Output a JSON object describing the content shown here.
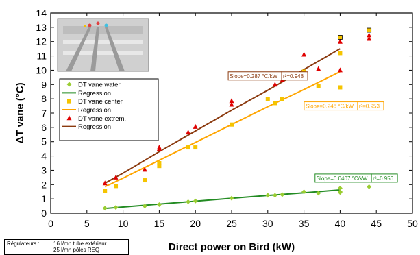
{
  "chart_data": {
    "type": "scatter",
    "xlabel": "Direct power on Bird (kW)",
    "ylabel": "ΔT vane (°C)",
    "xlim": [
      0,
      50
    ],
    "ylim": [
      0,
      14
    ],
    "xticks": [
      0,
      5,
      10,
      15,
      20,
      25,
      30,
      35,
      40,
      45,
      50
    ],
    "yticks": [
      0,
      1,
      2,
      3,
      4,
      5,
      6,
      7,
      8,
      9,
      10,
      11,
      12,
      13,
      14
    ],
    "grid": false,
    "legend_position": "upper-left, below inset photo",
    "series": [
      {
        "name": "DT vane water",
        "kind": "points",
        "marker": "diamond",
        "color": "#9acd32",
        "points": [
          [
            7.5,
            0.35
          ],
          [
            9,
            0.4
          ],
          [
            13,
            0.5
          ],
          [
            15,
            0.6
          ],
          [
            19,
            0.8
          ],
          [
            20,
            0.85
          ],
          [
            25,
            1.05
          ],
          [
            30,
            1.25
          ],
          [
            31,
            1.25
          ],
          [
            32,
            1.3
          ],
          [
            35,
            1.5
          ],
          [
            37,
            1.4
          ],
          [
            40,
            1.5
          ],
          [
            40,
            1.75
          ],
          [
            40,
            1.45
          ],
          [
            44,
            1.85
          ]
        ]
      },
      {
        "name": "Regression",
        "kind": "line",
        "color": "#228b22",
        "points": [
          [
            7.5,
            0.33
          ],
          [
            10,
            0.43
          ],
          [
            15,
            0.64
          ],
          [
            20,
            0.84
          ],
          [
            25,
            1.04
          ],
          [
            30,
            1.24
          ],
          [
            35,
            1.43
          ],
          [
            40,
            1.63
          ]
        ]
      },
      {
        "name": "DT vane center",
        "kind": "points",
        "marker": "square",
        "color": "#f5c400",
        "points": [
          [
            7.5,
            1.55
          ],
          [
            9,
            1.9
          ],
          [
            13,
            2.3
          ],
          [
            15,
            3.3
          ],
          [
            15,
            3.5
          ],
          [
            19,
            4.6
          ],
          [
            20,
            4.6
          ],
          [
            25,
            6.2
          ],
          [
            30,
            8.0
          ],
          [
            31,
            7.7
          ],
          [
            32,
            8.0
          ],
          [
            35,
            9.9
          ],
          [
            37,
            8.9
          ],
          [
            40,
            8.8
          ],
          [
            40,
            11.2
          ],
          [
            40,
            12.3
          ],
          [
            44,
            12.8
          ]
        ]
      },
      {
        "name": "Regression",
        "kind": "line",
        "color": "#ffa500",
        "points": [
          [
            7.5,
            1.85
          ],
          [
            10,
            2.45
          ],
          [
            15,
            3.7
          ],
          [
            20,
            4.95
          ],
          [
            25,
            6.2
          ],
          [
            30,
            7.45
          ],
          [
            35,
            8.65
          ],
          [
            40,
            9.9
          ]
        ]
      },
      {
        "name": "DT vane extrem.",
        "kind": "points",
        "marker": "triangle",
        "color": "#e00000",
        "points": [
          [
            7.5,
            2.1
          ],
          [
            9,
            2.5
          ],
          [
            13,
            3.05
          ],
          [
            15,
            4.5
          ],
          [
            15,
            4.6
          ],
          [
            19,
            5.65
          ],
          [
            20,
            6.05
          ],
          [
            25,
            7.6
          ],
          [
            25,
            7.85
          ],
          [
            30,
            9.45
          ],
          [
            31,
            9.0
          ],
          [
            32,
            9.3
          ],
          [
            35,
            11.1
          ],
          [
            37,
            10.1
          ],
          [
            40,
            12.0
          ],
          [
            40,
            10.0
          ],
          [
            44,
            12.2
          ],
          [
            44,
            12.45
          ]
        ]
      },
      {
        "name": "Regression",
        "kind": "line",
        "color": "#8b3a0f",
        "points": [
          [
            7.5,
            2.1
          ],
          [
            10,
            2.8
          ],
          [
            15,
            4.3
          ],
          [
            20,
            5.75
          ],
          [
            25,
            7.2
          ],
          [
            30,
            8.6
          ],
          [
            35,
            10.05
          ],
          [
            40,
            11.5
          ]
        ]
      }
    ],
    "annotations": [
      {
        "slope": "Slope=0.287 °C/kW",
        "r2": "r²=0.948",
        "color": "#8b3a0f",
        "x": 30.5,
        "y": 9.6
      },
      {
        "slope": "Slope=0.246 °C/kW",
        "r2": "r²=0.953",
        "color": "#ffa500",
        "x": 41,
        "y": 7.5
      },
      {
        "slope": "Slope=0.0407 °C/kW",
        "r2": "r²=0.956",
        "color": "#228b22",
        "x": 42.5,
        "y": 2.45
      }
    ]
  },
  "regulator_box": {
    "label": "Régulateurs :",
    "line1": "16 l/mn tube extérieur",
    "line2": "25 l/mn pôles REQ"
  },
  "colors": {
    "axis": "#000000",
    "background": "#ffffff",
    "inset_photo_bg": "#d8d8d8"
  }
}
